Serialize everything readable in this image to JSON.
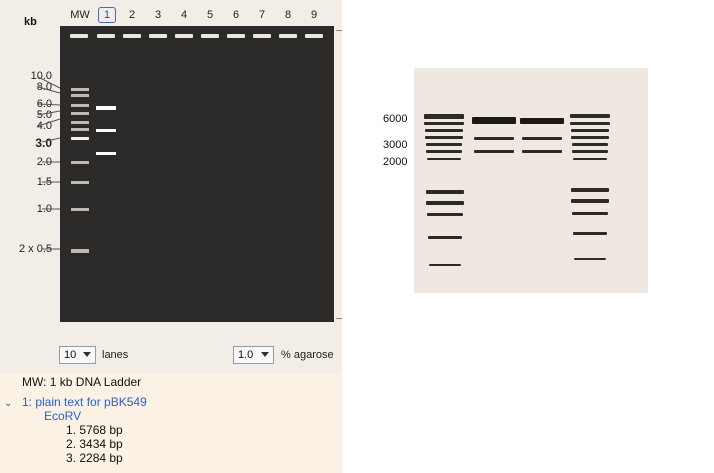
{
  "gel_panel": {
    "unit_label": "kb",
    "lane_labels": [
      "MW",
      "1",
      "2",
      "3",
      "4",
      "5",
      "6",
      "7",
      "8",
      "9"
    ],
    "selected_lane": "1",
    "ladder_labels": [
      "10.0",
      "8.0",
      "6.0",
      "5.0",
      "4.0",
      "3.0",
      "2.0",
      "1.5",
      "1.0",
      "2 x 0.5"
    ],
    "lane_count": "10",
    "lanes_text": "lanes",
    "agarose": "1.0",
    "agarose_text": "% agarose"
  },
  "info_panel": {
    "mw_line": "MW:  1 kb DNA Ladder",
    "expand_icon": "chevron-down-icon",
    "sample_title": "1:  plain text for pBK549",
    "sample_enzyme": "EcoRV",
    "fragments": [
      "1.  5768 bp",
      "2.  3434 bp",
      "3.  2284 bp"
    ]
  },
  "photo_panel": {
    "labels": [
      "6000",
      "3000",
      "2000"
    ]
  },
  "colors": {
    "gel_bg": "#2c2a28",
    "link_blue": "#2a62c8",
    "panel_bg": "#f3ede7"
  }
}
